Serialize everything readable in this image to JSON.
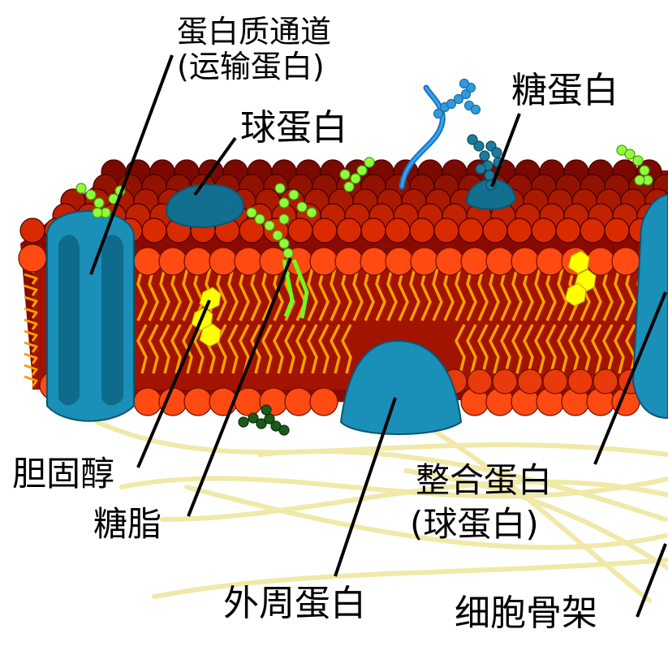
{
  "labels": {
    "protein_channel": "蛋白质通道",
    "protein_channel_sub": "(运输蛋白)",
    "globular_protein": "球蛋白",
    "glycoprotein": "糖蛋白",
    "cholesterol": "胆固醇",
    "glycolipid": "糖脂",
    "peripheral_protein": "外周蛋白",
    "integral_protein": "整合蛋白",
    "integral_protein_sub": "(球蛋白)",
    "cytoskeleton": "细胞骨架"
  },
  "colors": {
    "head_outer": "#ff4a12",
    "head_dark": "#7a0000",
    "tail": "#f5a000",
    "protein": "#1a8fb8",
    "protein_dark": "#116a87",
    "sugar_green": "#8fff3a",
    "sugar_blue": "#3399dd",
    "cholesterol": "#ffff00",
    "fiber": "#f3eeb0"
  }
}
